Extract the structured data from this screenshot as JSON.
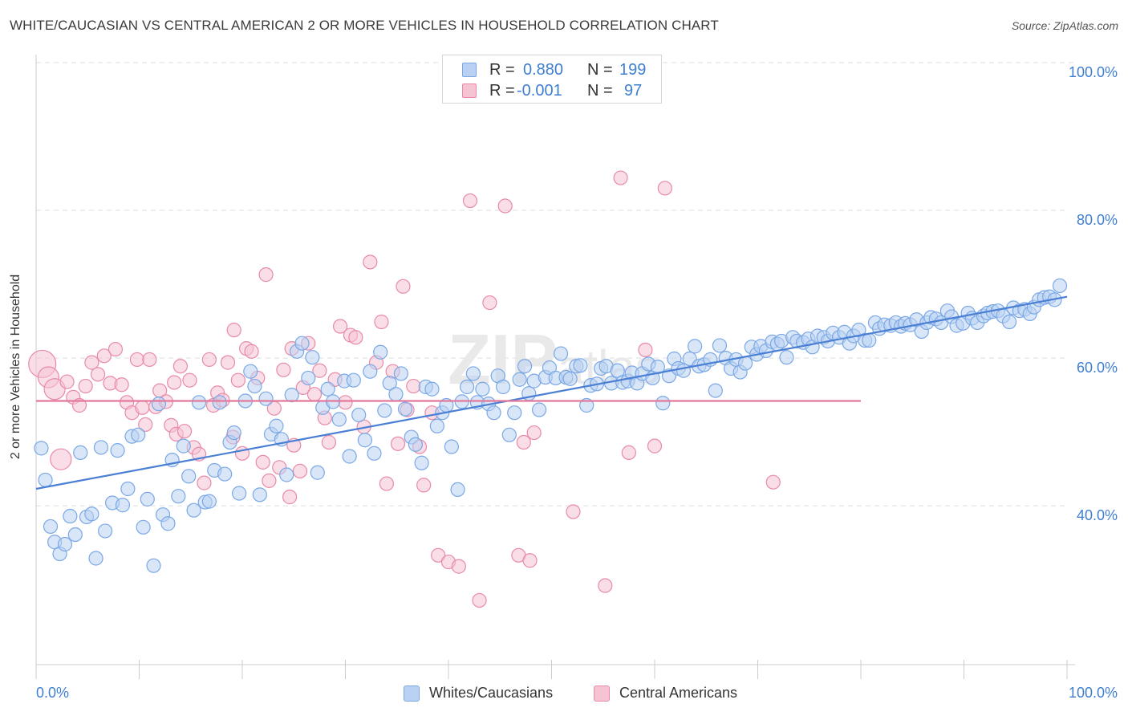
{
  "title": "WHITE/CAUCASIAN VS CENTRAL AMERICAN 2 OR MORE VEHICLES IN HOUSEHOLD CORRELATION CHART",
  "source": "Source: ZipAtlas.com",
  "watermark": "ZIPatlas",
  "legend": {
    "r_label": "R =",
    "n_label": "N =",
    "rows": [
      {
        "r": "0.880",
        "n": "199",
        "color": "#7aa8e6",
        "fill": "#b9d1f3"
      },
      {
        "r": "-0.001",
        "n": "97",
        "color": "#e88aa8",
        "fill": "#f6c3d3"
      }
    ]
  },
  "bottom_legend": [
    {
      "label": "Whites/Caucasians",
      "color": "#7aa8e6",
      "fill": "#b9d1f3"
    },
    {
      "label": "Central Americans",
      "color": "#e88aa8",
      "fill": "#f6c3d3"
    }
  ],
  "chart_data": {
    "type": "scatter",
    "title": "WHITE/CAUCASIAN VS CENTRAL AMERICAN 2 OR MORE VEHICLES IN HOUSEHOLD CORRELATION CHART",
    "xlabel": "",
    "ylabel": "2 or more Vehicles in Household",
    "x_tick_labels": [
      "0.0%",
      "100.0%"
    ],
    "y_tick_labels": [
      "40.0%",
      "60.0%",
      "80.0%",
      "100.0%"
    ],
    "y_ticks": [
      40,
      60,
      80,
      100
    ],
    "xlim": [
      0,
      100
    ],
    "ylim": [
      18.5,
      100
    ],
    "grid": "horizontal dashed",
    "series": [
      {
        "name": "Whites/Caucasians",
        "color": "#4a7fd4",
        "trend": {
          "x": [
            0,
            100
          ],
          "y": [
            42.3,
            68.3
          ]
        },
        "points": [
          [
            0.5,
            47.8
          ],
          [
            0.9,
            43.5
          ],
          [
            1.4,
            37.2
          ],
          [
            1.8,
            35.1
          ],
          [
            2.3,
            33.5
          ],
          [
            2.8,
            34.8
          ],
          [
            3.3,
            38.6
          ],
          [
            3.8,
            36.1
          ],
          [
            4.3,
            47.2
          ],
          [
            4.9,
            38.5
          ],
          [
            5.4,
            38.9
          ],
          [
            5.8,
            32.9
          ],
          [
            6.3,
            47.9
          ],
          [
            6.7,
            36.6
          ],
          [
            7.4,
            40.4
          ],
          [
            7.9,
            47.5
          ],
          [
            8.4,
            40.1
          ],
          [
            8.9,
            42.3
          ],
          [
            9.3,
            49.4
          ],
          [
            9.9,
            49.6
          ],
          [
            10.4,
            37.1
          ],
          [
            10.8,
            40.9
          ],
          [
            11.4,
            31.9
          ],
          [
            11.9,
            53.8
          ],
          [
            12.3,
            38.8
          ],
          [
            12.8,
            37.6
          ],
          [
            13.2,
            46.2
          ],
          [
            13.8,
            41.3
          ],
          [
            14.3,
            48.1
          ],
          [
            14.8,
            44.0
          ],
          [
            15.3,
            39.4
          ],
          [
            15.8,
            54.0
          ],
          [
            16.4,
            40.5
          ],
          [
            16.8,
            40.6
          ],
          [
            17.3,
            44.8
          ],
          [
            17.8,
            54.0
          ],
          [
            18.3,
            44.3
          ],
          [
            18.8,
            48.6
          ],
          [
            19.2,
            49.9
          ],
          [
            19.7,
            41.7
          ],
          [
            20.3,
            54.2
          ],
          [
            20.8,
            58.2
          ],
          [
            21.2,
            56.2
          ],
          [
            21.7,
            41.5
          ],
          [
            22.3,
            54.5
          ],
          [
            22.8,
            49.7
          ],
          [
            23.3,
            50.8
          ],
          [
            23.8,
            49.0
          ],
          [
            24.3,
            44.2
          ],
          [
            24.8,
            55.0
          ],
          [
            25.3,
            60.9
          ],
          [
            25.8,
            62.0
          ],
          [
            26.4,
            57.3
          ],
          [
            26.8,
            60.1
          ],
          [
            27.3,
            44.5
          ],
          [
            27.8,
            53.3
          ],
          [
            28.3,
            55.8
          ],
          [
            28.8,
            54.1
          ],
          [
            29.4,
            51.7
          ],
          [
            29.9,
            56.9
          ],
          [
            30.4,
            46.7
          ],
          [
            30.8,
            57.0
          ],
          [
            31.3,
            52.3
          ],
          [
            31.9,
            48.9
          ],
          [
            32.4,
            58.2
          ],
          [
            32.8,
            47.1
          ],
          [
            33.4,
            60.8
          ],
          [
            33.8,
            52.9
          ],
          [
            34.3,
            56.6
          ],
          [
            34.9,
            55.1
          ],
          [
            35.4,
            57.9
          ],
          [
            35.8,
            53.1
          ],
          [
            36.4,
            49.3
          ],
          [
            36.8,
            48.3
          ],
          [
            37.4,
            45.8
          ],
          [
            37.8,
            56.1
          ],
          [
            38.4,
            55.8
          ],
          [
            38.9,
            50.8
          ],
          [
            39.4,
            52.6
          ],
          [
            39.8,
            53.6
          ],
          [
            40.3,
            48.0
          ],
          [
            40.9,
            42.2
          ],
          [
            41.3,
            54.1
          ],
          [
            41.8,
            56.1
          ],
          [
            42.4,
            57.9
          ],
          [
            42.8,
            54.0
          ],
          [
            43.3,
            55.8
          ],
          [
            43.9,
            53.8
          ],
          [
            44.4,
            52.6
          ],
          [
            44.8,
            57.6
          ],
          [
            45.3,
            56.1
          ],
          [
            45.9,
            49.6
          ],
          [
            46.4,
            52.6
          ],
          [
            46.9,
            57.1
          ],
          [
            47.4,
            58.9
          ],
          [
            47.8,
            55.2
          ],
          [
            48.3,
            56.9
          ],
          [
            48.8,
            53.0
          ],
          [
            49.4,
            57.4
          ],
          [
            49.8,
            58.7
          ],
          [
            50.4,
            57.3
          ],
          [
            50.9,
            60.6
          ],
          [
            51.4,
            57.4
          ],
          [
            51.8,
            57.2
          ],
          [
            52.4,
            58.9
          ],
          [
            52.8,
            59.0
          ],
          [
            53.4,
            53.6
          ],
          [
            53.8,
            56.3
          ],
          [
            54.4,
            56.5
          ],
          [
            54.8,
            58.6
          ],
          [
            55.3,
            58.9
          ],
          [
            55.8,
            56.6
          ],
          [
            56.4,
            58.3
          ],
          [
            56.9,
            56.7
          ],
          [
            57.4,
            56.9
          ],
          [
            57.8,
            58.0
          ],
          [
            58.3,
            56.6
          ],
          [
            58.8,
            57.9
          ],
          [
            59.4,
            59.2
          ],
          [
            59.8,
            57.3
          ],
          [
            60.3,
            58.8
          ],
          [
            60.8,
            53.9
          ],
          [
            61.4,
            57.6
          ],
          [
            61.9,
            59.9
          ],
          [
            62.3,
            58.6
          ],
          [
            62.8,
            58.3
          ],
          [
            63.4,
            59.9
          ],
          [
            63.9,
            61.6
          ],
          [
            64.3,
            58.9
          ],
          [
            64.8,
            59.1
          ],
          [
            65.4,
            59.8
          ],
          [
            65.9,
            55.6
          ],
          [
            66.3,
            61.7
          ],
          [
            66.9,
            60.0
          ],
          [
            67.4,
            58.6
          ],
          [
            67.9,
            59.8
          ],
          [
            68.3,
            58.1
          ],
          [
            68.8,
            59.3
          ],
          [
            69.4,
            61.5
          ],
          [
            69.9,
            60.5
          ],
          [
            70.3,
            61.6
          ],
          [
            70.8,
            61.0
          ],
          [
            71.4,
            62.2
          ],
          [
            71.9,
            61.9
          ],
          [
            72.3,
            62.3
          ],
          [
            72.8,
            60.1
          ],
          [
            73.4,
            62.8
          ],
          [
            73.8,
            62.3
          ],
          [
            74.4,
            62.1
          ],
          [
            74.9,
            62.6
          ],
          [
            75.3,
            61.5
          ],
          [
            75.8,
            63.0
          ],
          [
            76.4,
            62.8
          ],
          [
            76.8,
            62.3
          ],
          [
            77.3,
            63.4
          ],
          [
            77.9,
            62.8
          ],
          [
            78.4,
            63.5
          ],
          [
            78.9,
            62.0
          ],
          [
            79.3,
            63.0
          ],
          [
            79.8,
            63.8
          ],
          [
            80.4,
            62.4
          ],
          [
            80.8,
            62.4
          ],
          [
            81.4,
            64.8
          ],
          [
            81.8,
            64.0
          ],
          [
            82.3,
            64.5
          ],
          [
            82.9,
            64.4
          ],
          [
            83.4,
            64.8
          ],
          [
            83.9,
            64.3
          ],
          [
            84.3,
            64.7
          ],
          [
            84.8,
            64.5
          ],
          [
            85.4,
            65.2
          ],
          [
            85.9,
            63.6
          ],
          [
            86.4,
            64.8
          ],
          [
            86.8,
            65.5
          ],
          [
            87.3,
            65.3
          ],
          [
            87.8,
            64.8
          ],
          [
            88.4,
            66.4
          ],
          [
            88.8,
            65.6
          ],
          [
            89.3,
            64.4
          ],
          [
            89.9,
            64.7
          ],
          [
            90.4,
            66.1
          ],
          [
            90.8,
            65.4
          ],
          [
            91.3,
            64.8
          ],
          [
            91.9,
            65.7
          ],
          [
            92.3,
            66.1
          ],
          [
            92.8,
            66.3
          ],
          [
            93.3,
            66.4
          ],
          [
            93.8,
            65.7
          ],
          [
            94.4,
            64.9
          ],
          [
            94.8,
            66.8
          ],
          [
            95.4,
            66.4
          ],
          [
            95.9,
            66.6
          ],
          [
            96.4,
            66.0
          ],
          [
            96.8,
            66.9
          ],
          [
            97.3,
            67.9
          ],
          [
            97.8,
            68.2
          ],
          [
            98.3,
            68.3
          ],
          [
            98.8,
            67.9
          ],
          [
            99.3,
            69.8
          ]
        ]
      },
      {
        "name": "Central Americans",
        "color": "#e2789c",
        "trend": {
          "x": [
            0,
            80
          ],
          "y": [
            54.2,
            54.2
          ]
        },
        "points": [
          [
            0.6,
            59.2
          ],
          [
            1.2,
            57.4
          ],
          [
            1.8,
            55.8
          ],
          [
            2.4,
            46.3
          ],
          [
            3.0,
            56.8
          ],
          [
            3.6,
            54.7
          ],
          [
            4.2,
            53.6
          ],
          [
            4.8,
            56.2
          ],
          [
            5.4,
            59.4
          ],
          [
            6.0,
            57.8
          ],
          [
            6.6,
            60.3
          ],
          [
            7.2,
            56.6
          ],
          [
            7.7,
            61.2
          ],
          [
            8.3,
            56.4
          ],
          [
            8.8,
            54.0
          ],
          [
            9.3,
            52.6
          ],
          [
            9.8,
            59.8
          ],
          [
            10.3,
            53.3
          ],
          [
            10.6,
            51.0
          ],
          [
            11.0,
            59.8
          ],
          [
            11.6,
            53.4
          ],
          [
            12.0,
            55.6
          ],
          [
            12.6,
            54.1
          ],
          [
            13.1,
            50.9
          ],
          [
            13.6,
            49.7
          ],
          [
            14.0,
            58.9
          ],
          [
            14.4,
            50.1
          ],
          [
            14.9,
            57.0
          ],
          [
            15.3,
            47.9
          ],
          [
            15.8,
            47.0
          ],
          [
            16.3,
            43.1
          ],
          [
            16.8,
            59.8
          ],
          [
            17.2,
            53.6
          ],
          [
            17.6,
            55.3
          ],
          [
            18.1,
            54.3
          ],
          [
            18.6,
            59.4
          ],
          [
            19.1,
            49.3
          ],
          [
            19.6,
            57.0
          ],
          [
            20.0,
            47.1
          ],
          [
            20.4,
            61.3
          ],
          [
            20.9,
            60.9
          ],
          [
            21.5,
            57.3
          ],
          [
            22.0,
            45.9
          ],
          [
            22.6,
            43.4
          ],
          [
            23.1,
            53.2
          ],
          [
            23.6,
            45.2
          ],
          [
            24.0,
            58.4
          ],
          [
            24.6,
            41.2
          ],
          [
            25.0,
            48.2
          ],
          [
            25.6,
            44.7
          ],
          [
            25.9,
            56.0
          ],
          [
            26.4,
            62.0
          ],
          [
            27.0,
            55.1
          ],
          [
            27.5,
            58.3
          ],
          [
            28.0,
            51.9
          ],
          [
            28.4,
            48.6
          ],
          [
            29.0,
            57.1
          ],
          [
            29.5,
            64.3
          ],
          [
            30.0,
            54.0
          ],
          [
            30.5,
            63.1
          ],
          [
            31.0,
            62.8
          ],
          [
            31.8,
            50.7
          ],
          [
            32.4,
            73.0
          ],
          [
            33.0,
            59.4
          ],
          [
            33.5,
            64.9
          ],
          [
            34.0,
            43.0
          ],
          [
            34.6,
            58.2
          ],
          [
            35.1,
            48.4
          ],
          [
            35.6,
            69.7
          ],
          [
            36.0,
            53.0
          ],
          [
            36.6,
            56.2
          ],
          [
            37.2,
            48.0
          ],
          [
            37.6,
            42.8
          ],
          [
            38.4,
            52.6
          ],
          [
            39.0,
            33.3
          ],
          [
            40.0,
            32.4
          ],
          [
            41.0,
            31.8
          ],
          [
            42.1,
            81.3
          ],
          [
            43.0,
            27.2
          ],
          [
            44.0,
            67.5
          ],
          [
            45.5,
            80.6
          ],
          [
            46.8,
            33.3
          ],
          [
            47.3,
            48.6
          ],
          [
            47.9,
            32.6
          ],
          [
            48.3,
            49.9
          ],
          [
            52.1,
            39.2
          ],
          [
            55.2,
            29.2
          ],
          [
            56.7,
            84.4
          ],
          [
            57.5,
            47.2
          ],
          [
            59.1,
            61.1
          ],
          [
            60.0,
            48.1
          ],
          [
            61.0,
            83.0
          ],
          [
            71.5,
            43.2
          ],
          [
            22.3,
            71.3
          ],
          [
            24.8,
            61.3
          ],
          [
            19.2,
            63.8
          ],
          [
            13.4,
            56.7
          ]
        ]
      }
    ]
  }
}
